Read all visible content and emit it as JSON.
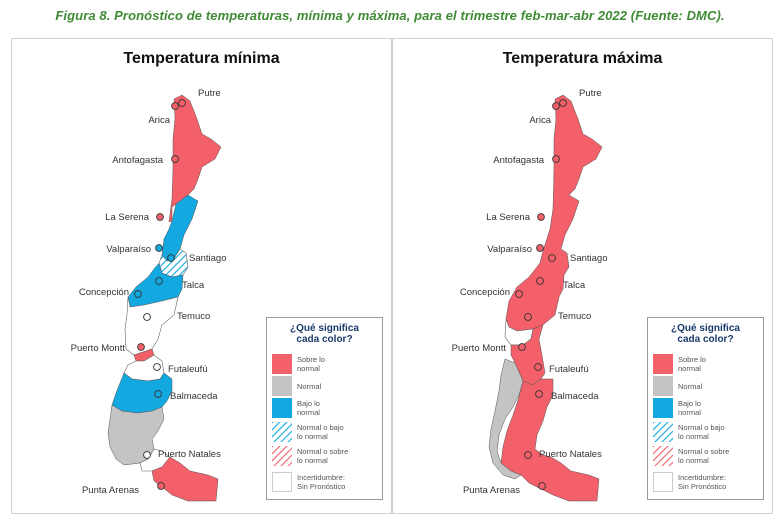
{
  "caption": "Figura 8. Pronóstico de temperaturas, mínima y máxima, para el trimestre feb-mar-abr 2022 (Fuente: DMC).",
  "colors": {
    "sobre": "#f36069",
    "normal": "#c4c4c4",
    "bajo": "#14a8e0",
    "sin": "#ffffff",
    "caption": "#3f8a34",
    "legend_title": "#1a3a6a"
  },
  "panels": [
    {
      "title": "Temperatura mínima",
      "regions_north_to_south": [
        "sobre",
        "bajo",
        "normal o bajo lo normal",
        "bajo",
        "sin pronóstico",
        "sobre",
        "sin pronóstico",
        "bajo",
        "normal",
        "sobre"
      ]
    },
    {
      "title": "Temperatura máxima",
      "regions_north_to_south": [
        "sobre",
        "sin pronóstico",
        "sobre",
        "normal",
        "sobre"
      ]
    }
  ],
  "cities": [
    "Putre",
    "Arica",
    "Antofagasta",
    "La Serena",
    "Valparaíso",
    "Santiago",
    "Talca",
    "Concepción",
    "Temuco",
    "Puerto Montt",
    "Futaleufú",
    "Balmaceda",
    "Puerto Natales",
    "Punta Arenas"
  ],
  "legend": {
    "title_line1": "¿Qué significa",
    "title_line2": "cada color?",
    "items": [
      {
        "line1": "Sobre lo",
        "line2": "normal"
      },
      {
        "line1": "Normal",
        "line2": ""
      },
      {
        "line1": "Bajo lo",
        "line2": "normal"
      },
      {
        "line1": "Normal o bajo",
        "line2": "lo normal"
      },
      {
        "line1": "Normal o sobre",
        "line2": "lo normal"
      },
      {
        "line1": "Incertidumbre:",
        "line2": "Sin Pronóstico"
      }
    ]
  }
}
